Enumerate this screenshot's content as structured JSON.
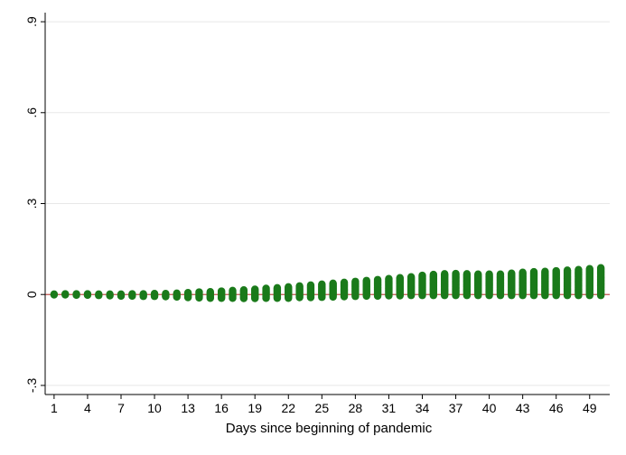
{
  "chart_data": {
    "type": "scatter",
    "title": "",
    "xlabel": "Days since beginning of pandemic",
    "ylabel": "",
    "xlim": [
      0.2,
      50.8
    ],
    "ylim": [
      -0.33,
      0.93
    ],
    "x_ticks": [
      1,
      4,
      7,
      10,
      13,
      16,
      19,
      22,
      25,
      28,
      31,
      34,
      37,
      40,
      43,
      46,
      49
    ],
    "x_tick_labels": [
      "1",
      "4",
      "7",
      "10",
      "13",
      "16",
      "19",
      "22",
      "25",
      "28",
      "31",
      "34",
      "37",
      "40",
      "43",
      "46",
      "49"
    ],
    "y_ticks": [
      -0.3,
      0,
      0.3,
      0.6,
      0.9
    ],
    "y_tick_labels": [
      "-.3",
      "0",
      ".3",
      ".6",
      ".9"
    ],
    "grid": true,
    "reference_line": {
      "y": 0,
      "color": "#c0504d"
    },
    "marker_color": "#1a7a1a",
    "x": [
      1,
      2,
      3,
      4,
      5,
      6,
      7,
      8,
      9,
      10,
      11,
      12,
      13,
      14,
      15,
      16,
      17,
      18,
      19,
      20,
      21,
      22,
      23,
      24,
      25,
      26,
      27,
      28,
      29,
      30,
      31,
      32,
      33,
      34,
      35,
      36,
      37,
      38,
      39,
      40,
      41,
      42,
      43,
      44,
      45,
      46,
      47,
      48,
      49,
      50
    ],
    "y_max": [
      0.001,
      0.002,
      0.002,
      0.002,
      0.001,
      0.001,
      0.001,
      0.002,
      0.002,
      0.003,
      0.003,
      0.004,
      0.006,
      0.008,
      0.009,
      0.011,
      0.013,
      0.015,
      0.017,
      0.02,
      0.022,
      0.025,
      0.028,
      0.031,
      0.034,
      0.037,
      0.04,
      0.043,
      0.046,
      0.049,
      0.052,
      0.055,
      0.058,
      0.063,
      0.066,
      0.068,
      0.069,
      0.068,
      0.067,
      0.067,
      0.067,
      0.07,
      0.073,
      0.075,
      0.076,
      0.078,
      0.08,
      0.082,
      0.085,
      0.088
    ],
    "y_min": [
      -0.001,
      -0.001,
      -0.002,
      -0.002,
      -0.003,
      -0.004,
      -0.005,
      -0.005,
      -0.006,
      -0.006,
      -0.007,
      -0.008,
      -0.01,
      -0.011,
      -0.012,
      -0.012,
      -0.012,
      -0.013,
      -0.013,
      -0.012,
      -0.012,
      -0.012,
      -0.01,
      -0.01,
      -0.009,
      -0.008,
      -0.007,
      -0.006,
      -0.005,
      -0.005,
      -0.004,
      -0.004,
      -0.003,
      -0.003,
      -0.003,
      -0.003,
      -0.003,
      -0.003,
      -0.003,
      -0.003,
      -0.003,
      -0.003,
      -0.003,
      -0.003,
      -0.003,
      -0.003,
      -0.003,
      -0.003,
      -0.003,
      -0.003
    ]
  }
}
